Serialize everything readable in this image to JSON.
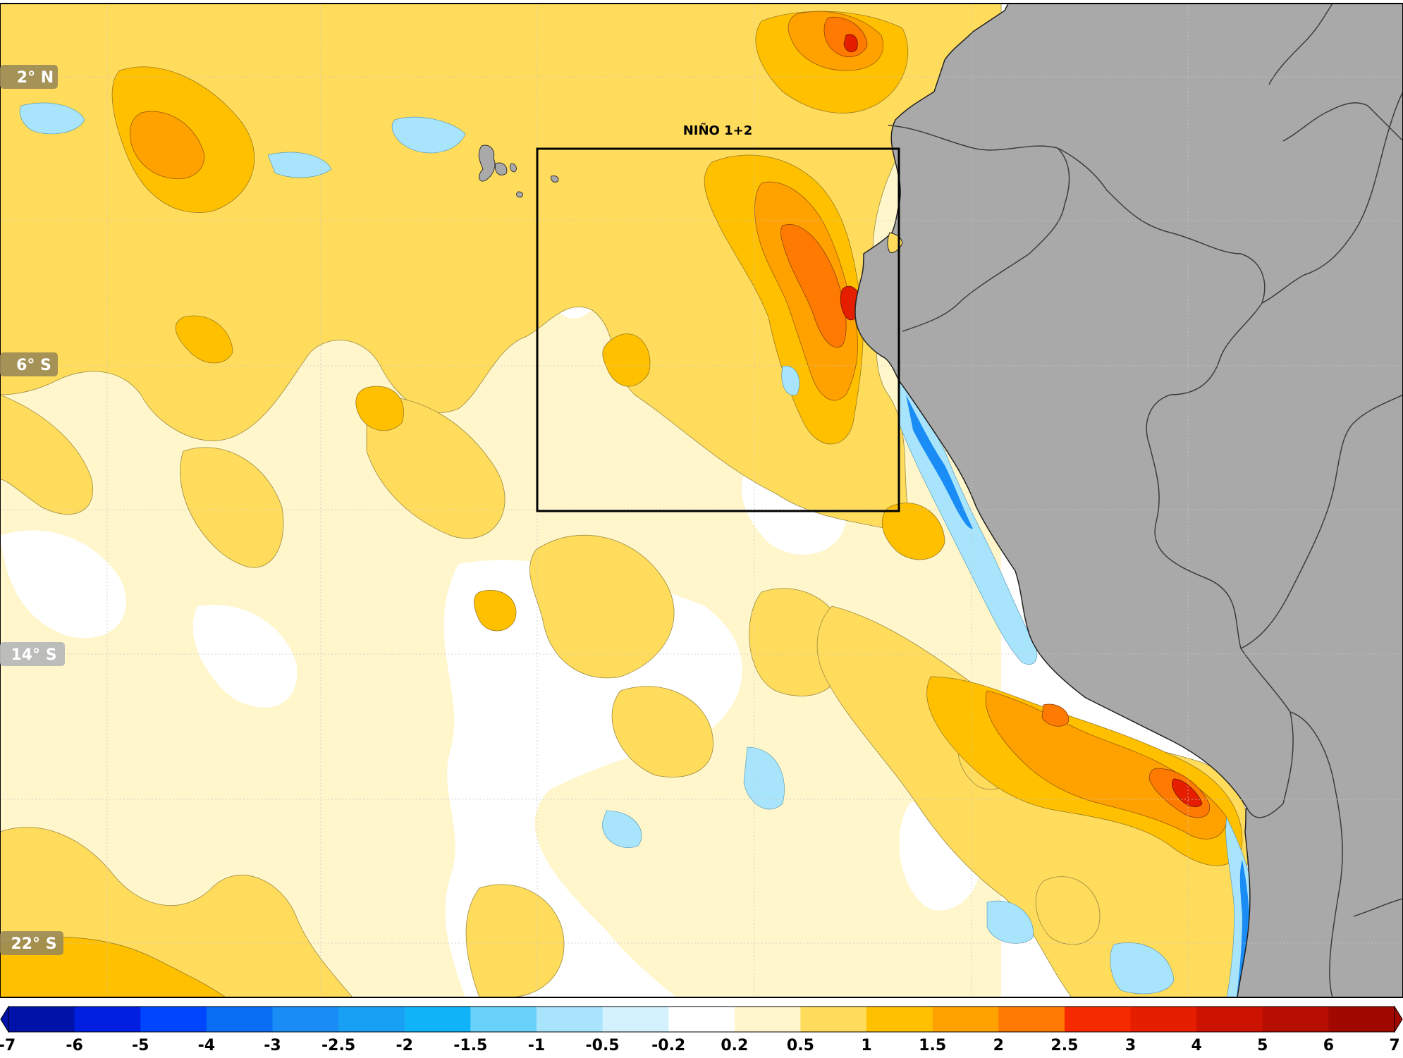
{
  "map": {
    "box_label": "NIÑO 1+2",
    "lat_labels": [
      "2° N",
      "6° S",
      "14° S",
      "22° S"
    ],
    "colors": {
      "land": "#a9a9a9",
      "border": "#3c3c3c",
      "ocean_neutral": "#ffffff",
      "label_bg_dark": "#9a8a55",
      "label_bg_light": "#b8b8b8",
      "grid": "#bbbbbb"
    }
  },
  "legend": {
    "ticks": [
      "-7",
      "-6",
      "-5",
      "-4",
      "-3",
      "-2.5",
      "-2",
      "-1.5",
      "-1",
      "-0.5",
      "-0.2",
      "0.2",
      "0.5",
      "1",
      "1.5",
      "2",
      "2.5",
      "3",
      "4",
      "5",
      "6",
      "7"
    ],
    "colors": [
      "#0012a8",
      "#001fe0",
      "#0046ff",
      "#0a6ef5",
      "#1a8cf5",
      "#18a0f5",
      "#10b2f8",
      "#6ad2fa",
      "#a8e4fc",
      "#d4f2fe",
      "#ffffff",
      "#fff6cc",
      "#ffdc5c",
      "#ffc000",
      "#ffa200",
      "#ff7a00",
      "#f52a00",
      "#e51e00",
      "#cc1200",
      "#b60e00",
      "#a10800"
    ]
  }
}
